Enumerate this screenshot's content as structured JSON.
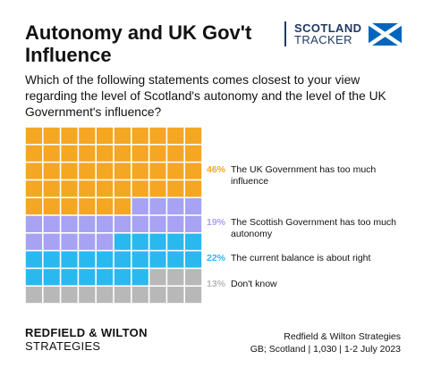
{
  "header": {
    "title": "Autonomy and UK Gov't Influence",
    "brand_line1": "SCOTLAND",
    "brand_line2": "TRACKER"
  },
  "question": "Which of the following statements comes closest to your view regarding the level of Scotland's autonomy and the level of the UK Government's influence?",
  "chart_data": {
    "type": "waffle",
    "grid": [
      10,
      10
    ],
    "categories": [
      "The UK Government has too much influence",
      "The Scottish Government has too much autonomy",
      "The current balance is about right",
      "Don't know"
    ],
    "values": [
      46,
      19,
      22,
      13
    ],
    "labels": [
      "46%",
      "19%",
      "22%",
      "13%"
    ],
    "colors": [
      "#f5a623",
      "#a7a3f2",
      "#29b9ee",
      "#b8b8b8"
    ]
  },
  "footer": {
    "org_line1": "REDFIELD & WILTON",
    "org_line2": "STRATEGIES",
    "source_line1": "Redfield & Wilton Strategies",
    "source_line2": "GB; Scotland | 1,030 | 1-2 July 2023"
  }
}
